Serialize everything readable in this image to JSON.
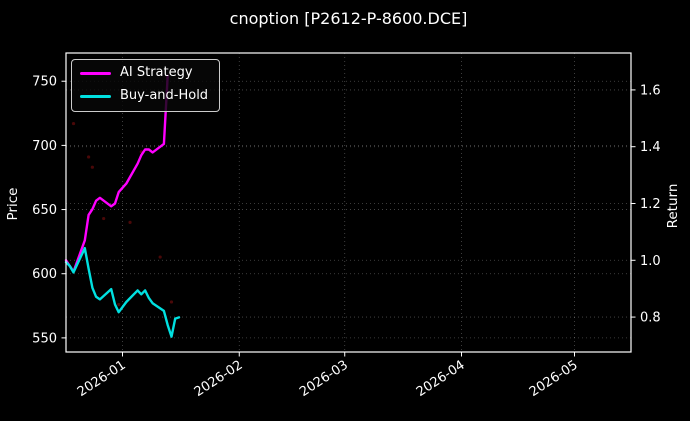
{
  "title": "cnoption [P2612-P-8600.DCE]",
  "axes": {
    "left_label": "Price",
    "right_label": "Return"
  },
  "legend": {
    "items": [
      {
        "label": "AI Strategy",
        "color": "#ff00ff"
      },
      {
        "label": "Buy-and-Hold",
        "color": "#00e0e0"
      }
    ]
  },
  "chart_data": {
    "type": "line",
    "title": "cnoption [P2612-P-8600.DCE]",
    "ylabel_left": "Price",
    "ylabel_right": "Return",
    "grid": true,
    "legend_position": "upper left",
    "background": "#000000",
    "text_color": "#ffffff",
    "x_range": [
      "2025-12-17",
      "2026-05-16"
    ],
    "price_lim": [
      539,
      772
    ],
    "return_lim": [
      0.677,
      1.73
    ],
    "price_ticks": [
      550,
      600,
      650,
      700,
      750
    ],
    "return_ticks": [
      "0.8",
      "1.0",
      "1.2",
      "1.4",
      "1.6"
    ],
    "x_ticks": [
      {
        "label": "2026-01",
        "date": "2026-01-01"
      },
      {
        "label": "2026-02",
        "date": "2026-02-01"
      },
      {
        "label": "2026-03",
        "date": "2026-03-01"
      },
      {
        "label": "2026-04",
        "date": "2026-04-01"
      },
      {
        "label": "2026-05",
        "date": "2026-05-01"
      }
    ],
    "series": [
      {
        "name": "AI Strategy",
        "color": "#ff00ff",
        "axis": "return",
        "points": [
          [
            "2025-12-17",
            1.0
          ],
          [
            "2025-12-18",
            0.98
          ],
          [
            "2025-12-19",
            0.96
          ],
          [
            "2025-12-22",
            1.07
          ],
          [
            "2025-12-23",
            1.16
          ],
          [
            "2025-12-24",
            1.18
          ],
          [
            "2025-12-25",
            1.21
          ],
          [
            "2025-12-26",
            1.22
          ],
          [
            "2025-12-29",
            1.19
          ],
          [
            "2025-12-30",
            1.2
          ],
          [
            "2025-12-31",
            1.24
          ],
          [
            "2026-01-02",
            1.27
          ],
          [
            "2026-01-05",
            1.34
          ],
          [
            "2026-01-06",
            1.37
          ],
          [
            "2026-01-07",
            1.39
          ],
          [
            "2026-01-08",
            1.39
          ],
          [
            "2026-01-09",
            1.38
          ],
          [
            "2026-01-12",
            1.41
          ],
          [
            "2026-01-13",
            1.65
          ]
        ]
      },
      {
        "name": "Buy-and-Hold",
        "color": "#00e0e0",
        "axis": "price",
        "points": [
          [
            "2025-12-17",
            609
          ],
          [
            "2025-12-18",
            606
          ],
          [
            "2025-12-19",
            601
          ],
          [
            "2025-12-22",
            620
          ],
          [
            "2025-12-23",
            604
          ],
          [
            "2025-12-24",
            589
          ],
          [
            "2025-12-25",
            582
          ],
          [
            "2025-12-26",
            580
          ],
          [
            "2025-12-29",
            588
          ],
          [
            "2025-12-30",
            576
          ],
          [
            "2025-12-31",
            570
          ],
          [
            "2026-01-02",
            578
          ],
          [
            "2026-01-05",
            587
          ],
          [
            "2026-01-06",
            584
          ],
          [
            "2026-01-07",
            587
          ],
          [
            "2026-01-08",
            581
          ],
          [
            "2026-01-09",
            577
          ],
          [
            "2026-01-12",
            571
          ],
          [
            "2026-01-13",
            560
          ],
          [
            "2026-01-14",
            551
          ],
          [
            "2026-01-15",
            565
          ],
          [
            "2026-01-16",
            566
          ]
        ]
      }
    ],
    "markers": {
      "name": "faint-trade-dots",
      "color": "#4a0808",
      "axis": "price",
      "points": [
        [
          "2025-12-19",
          717
        ],
        [
          "2025-12-23",
          691
        ],
        [
          "2025-12-24",
          683
        ],
        [
          "2025-12-27",
          643
        ],
        [
          "2025-12-31",
          576
        ],
        [
          "2026-01-03",
          640
        ],
        [
          "2026-01-06",
          695
        ],
        [
          "2026-01-11",
          613
        ],
        [
          "2026-01-14",
          578
        ]
      ]
    }
  }
}
